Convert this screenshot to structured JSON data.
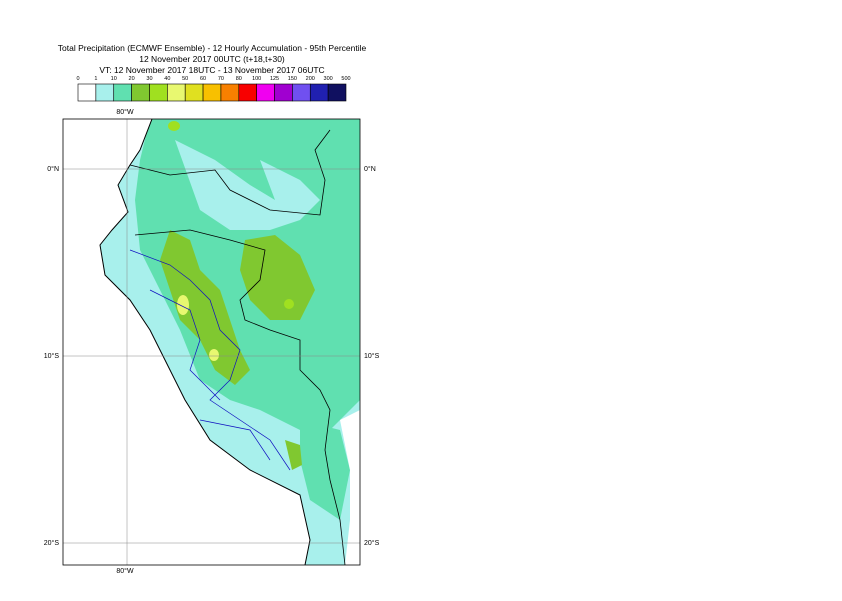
{
  "header": {
    "title": "Total Precipitation (ECMWF Ensemble) - 12 Hourly Accumulation - 95th Percentile",
    "base_time": "12 November 2017 00UTC (t+18,t+30)",
    "valid_time": "VT: 12 November 2017 18UTC - 13 November 2017 06UTC"
  },
  "legend": {
    "labels": [
      0,
      1,
      10,
      20,
      30,
      40,
      50,
      60,
      70,
      80,
      100,
      125,
      150,
      200,
      300,
      500
    ],
    "colors": [
      "#ffffff",
      "#a8f0ec",
      "#60e0b0",
      "#80c830",
      "#a0e020",
      "#e8f870",
      "#e0e020",
      "#f8c000",
      "#f88000",
      "#f80000",
      "#f000f0",
      "#a000d0",
      "#7050f0",
      "#2020b0",
      "#101060"
    ]
  },
  "map": {
    "lon_label": "80°W",
    "lat_labels": [
      "0°N",
      "10°S",
      "20°S"
    ]
  }
}
